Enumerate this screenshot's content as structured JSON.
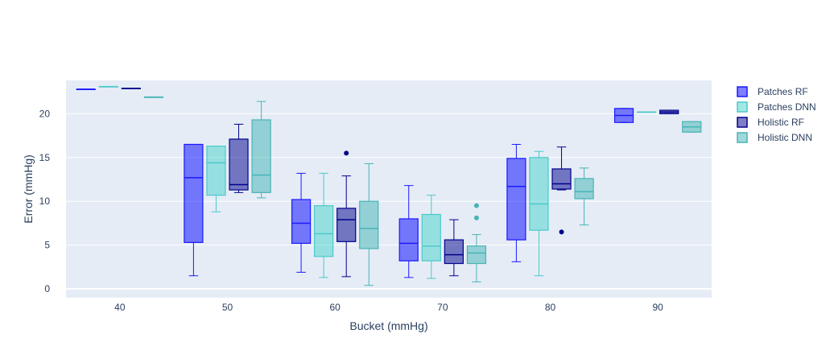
{
  "chart_data": {
    "type": "box",
    "xlabel": "Bucket (mmHg)",
    "ylabel": "Error (mmHg)",
    "ylim": [
      -1,
      23.8
    ],
    "y_ticks": [
      0,
      5,
      10,
      15,
      20
    ],
    "grid": true,
    "legend_position": "top-right",
    "categories": [
      "40",
      "50",
      "60",
      "70",
      "80",
      "90"
    ],
    "series": [
      {
        "name": "Patches RF",
        "color": "#1a1aff",
        "fill": "rgba(0,0,255,0.5)",
        "boxes": [
          {
            "category": "40",
            "min": 22.8,
            "q1": 22.8,
            "median": 22.8,
            "q3": 22.8,
            "max": 22.8,
            "outliers": []
          },
          {
            "category": "50",
            "min": 1.5,
            "q1": 5.3,
            "median": 12.7,
            "q3": 16.5,
            "max": 16.5,
            "outliers": []
          },
          {
            "category": "60",
            "min": 1.9,
            "q1": 5.2,
            "median": 7.5,
            "q3": 10.2,
            "max": 13.2,
            "outliers": []
          },
          {
            "category": "70",
            "min": 1.3,
            "q1": 3.2,
            "median": 5.2,
            "q3": 8.0,
            "max": 11.8,
            "outliers": []
          },
          {
            "category": "80",
            "min": 3.1,
            "q1": 5.6,
            "median": 11.7,
            "q3": 14.9,
            "max": 16.5,
            "outliers": []
          },
          {
            "category": "90",
            "min": 19.0,
            "q1": 19.0,
            "median": 19.8,
            "q3": 20.6,
            "max": 20.6,
            "outliers": []
          }
        ]
      },
      {
        "name": "Patches DNN",
        "color": "#4cc9c9",
        "fill": "rgba(72,209,204,0.5)",
        "boxes": [
          {
            "category": "40",
            "min": 23.1,
            "q1": 23.1,
            "median": 23.1,
            "q3": 23.1,
            "max": 23.1,
            "outliers": []
          },
          {
            "category": "50",
            "min": 8.8,
            "q1": 10.7,
            "median": 14.4,
            "q3": 16.3,
            "max": 16.3,
            "outliers": []
          },
          {
            "category": "60",
            "min": 1.3,
            "q1": 3.7,
            "median": 6.3,
            "q3": 9.5,
            "max": 13.2,
            "outliers": []
          },
          {
            "category": "70",
            "min": 1.2,
            "q1": 3.2,
            "median": 4.9,
            "q3": 8.5,
            "max": 10.7,
            "outliers": []
          },
          {
            "category": "80",
            "min": 1.5,
            "q1": 6.7,
            "median": 9.7,
            "q3": 15.0,
            "max": 15.7,
            "outliers": []
          },
          {
            "category": "90",
            "min": 20.2,
            "q1": 20.2,
            "median": 20.2,
            "q3": 20.2,
            "max": 20.2,
            "outliers": []
          }
        ]
      },
      {
        "name": "Holistic RF",
        "color": "#00008b",
        "fill": "rgba(0,0,139,0.5)",
        "boxes": [
          {
            "category": "40",
            "min": 22.9,
            "q1": 22.9,
            "median": 22.9,
            "q3": 22.9,
            "max": 22.9,
            "outliers": []
          },
          {
            "category": "50",
            "min": 11.0,
            "q1": 11.3,
            "median": 11.9,
            "q3": 17.1,
            "max": 18.8,
            "outliers": []
          },
          {
            "category": "60",
            "min": 1.4,
            "q1": 5.4,
            "median": 7.9,
            "q3": 9.2,
            "max": 12.9,
            "outliers": [
              15.5
            ]
          },
          {
            "category": "70",
            "min": 1.5,
            "q1": 2.9,
            "median": 3.9,
            "q3": 5.6,
            "max": 7.9,
            "outliers": []
          },
          {
            "category": "80",
            "min": 11.3,
            "q1": 11.4,
            "median": 12.0,
            "q3": 13.7,
            "max": 16.2,
            "outliers": [
              6.5
            ]
          },
          {
            "category": "90",
            "min": 20.0,
            "q1": 20.0,
            "median": 20.2,
            "q3": 20.4,
            "max": 20.4,
            "outliers": []
          }
        ]
      },
      {
        "name": "Holistic DNN",
        "color": "#48b4b4",
        "fill": "rgba(64,180,180,0.5)",
        "boxes": [
          {
            "category": "40",
            "min": 21.9,
            "q1": 21.9,
            "median": 21.9,
            "q3": 21.9,
            "max": 21.9,
            "outliers": []
          },
          {
            "category": "50",
            "min": 10.4,
            "q1": 11.0,
            "median": 13.0,
            "q3": 19.3,
            "max": 21.4,
            "outliers": []
          },
          {
            "category": "60",
            "min": 0.4,
            "q1": 4.6,
            "median": 6.9,
            "q3": 10.0,
            "max": 14.3,
            "outliers": []
          },
          {
            "category": "70",
            "min": 0.8,
            "q1": 2.9,
            "median": 4.1,
            "q3": 4.9,
            "max": 6.2,
            "outliers": [
              9.5,
              8.1
            ]
          },
          {
            "category": "80",
            "min": 7.3,
            "q1": 10.3,
            "median": 11.1,
            "q3": 12.6,
            "max": 13.8,
            "outliers": []
          },
          {
            "category": "90",
            "min": 17.9,
            "q1": 17.9,
            "median": 18.5,
            "q3": 19.1,
            "max": 19.1,
            "outliers": []
          }
        ]
      }
    ]
  }
}
